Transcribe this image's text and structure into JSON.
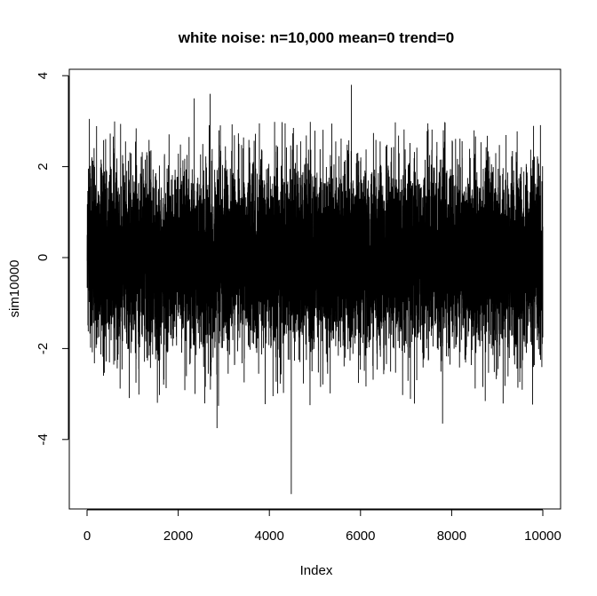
{
  "chart_data": {
    "type": "line",
    "title": "white noise: n=10,000 mean=0 trend=0",
    "xlabel": "Index",
    "ylabel": "sim10000",
    "xlim": [
      0,
      10000
    ],
    "ylim": [
      -5.2,
      3.8
    ],
    "x_ticks": [
      0,
      2000,
      4000,
      6000,
      8000,
      10000
    ],
    "x_tick_labels": [
      "0",
      "2000",
      "4000",
      "6000",
      "8000",
      "10000"
    ],
    "y_ticks": [
      -4,
      -2,
      0,
      2,
      4
    ],
    "y_tick_labels": [
      "-4",
      "-2",
      "0",
      "2",
      "4"
    ],
    "n": 10000,
    "mean": 0,
    "sd": 1,
    "line_color": "#000000",
    "grid": false,
    "legend": "none",
    "notable_points": [
      {
        "x": 4480,
        "y": -5.2
      },
      {
        "x": 5800,
        "y": 3.8
      },
      {
        "x": 2700,
        "y": 3.6
      },
      {
        "x": 2350,
        "y": 3.5
      },
      {
        "x": 2850,
        "y": -3.75
      },
      {
        "x": 7800,
        "y": -3.65
      },
      {
        "x": 50,
        "y": 3.05
      }
    ]
  }
}
